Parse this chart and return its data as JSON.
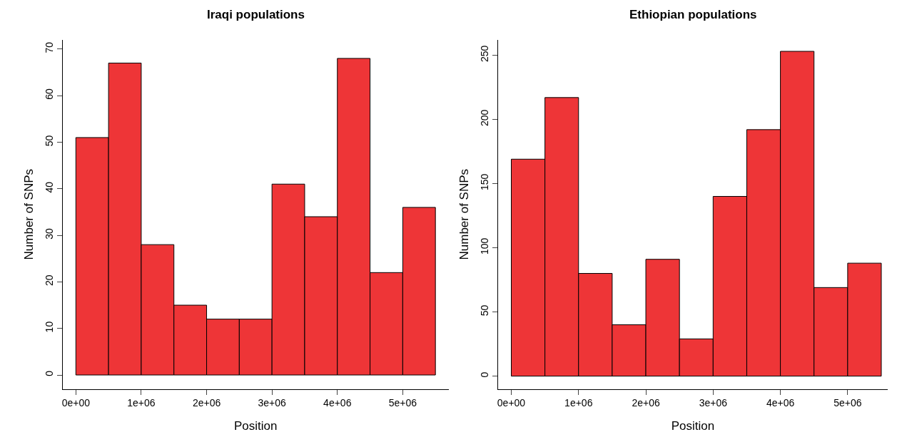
{
  "chart_data": [
    {
      "type": "histogram",
      "title": "Iraqi populations",
      "xlabel": "Position",
      "ylabel": "Number of SNPs",
      "color": "#ee3537",
      "bins": [
        0,
        500000,
        1000000,
        1500000,
        2000000,
        2500000,
        3000000,
        3500000,
        4000000,
        4500000,
        5000000,
        5500000
      ],
      "values": [
        51,
        67,
        28,
        15,
        12,
        12,
        41,
        34,
        68,
        22,
        36
      ],
      "xlim": [
        -200000,
        5700000
      ],
      "ylim": [
        -3,
        72
      ],
      "xticks": [
        {
          "value": 0,
          "label": "0e+00"
        },
        {
          "value": 1000000,
          "label": "1e+06"
        },
        {
          "value": 2000000,
          "label": "2e+06"
        },
        {
          "value": 3000000,
          "label": "3e+06"
        },
        {
          "value": 4000000,
          "label": "4e+06"
        },
        {
          "value": 5000000,
          "label": "5e+06"
        }
      ],
      "yticks": [
        0,
        10,
        20,
        30,
        40,
        50,
        60,
        70
      ]
    },
    {
      "type": "histogram",
      "title": "Ethiopian populations",
      "xlabel": "Position",
      "ylabel": "Number of SNPs",
      "color": "#ee3537",
      "bins": [
        0,
        500000,
        1000000,
        1500000,
        2000000,
        2500000,
        3000000,
        3500000,
        4000000,
        4500000,
        5000000,
        5500000
      ],
      "values": [
        169,
        217,
        80,
        40,
        91,
        29,
        140,
        192,
        253,
        69,
        88
      ],
      "xlim": [
        -200000,
        5600000
      ],
      "ylim": [
        -10,
        262
      ],
      "xticks": [
        {
          "value": 0,
          "label": "0e+00"
        },
        {
          "value": 1000000,
          "label": "1e+06"
        },
        {
          "value": 2000000,
          "label": "2e+06"
        },
        {
          "value": 3000000,
          "label": "3e+06"
        },
        {
          "value": 4000000,
          "label": "4e+06"
        },
        {
          "value": 5000000,
          "label": "5e+06"
        }
      ],
      "yticks": [
        0,
        50,
        100,
        150,
        200,
        250
      ]
    }
  ]
}
